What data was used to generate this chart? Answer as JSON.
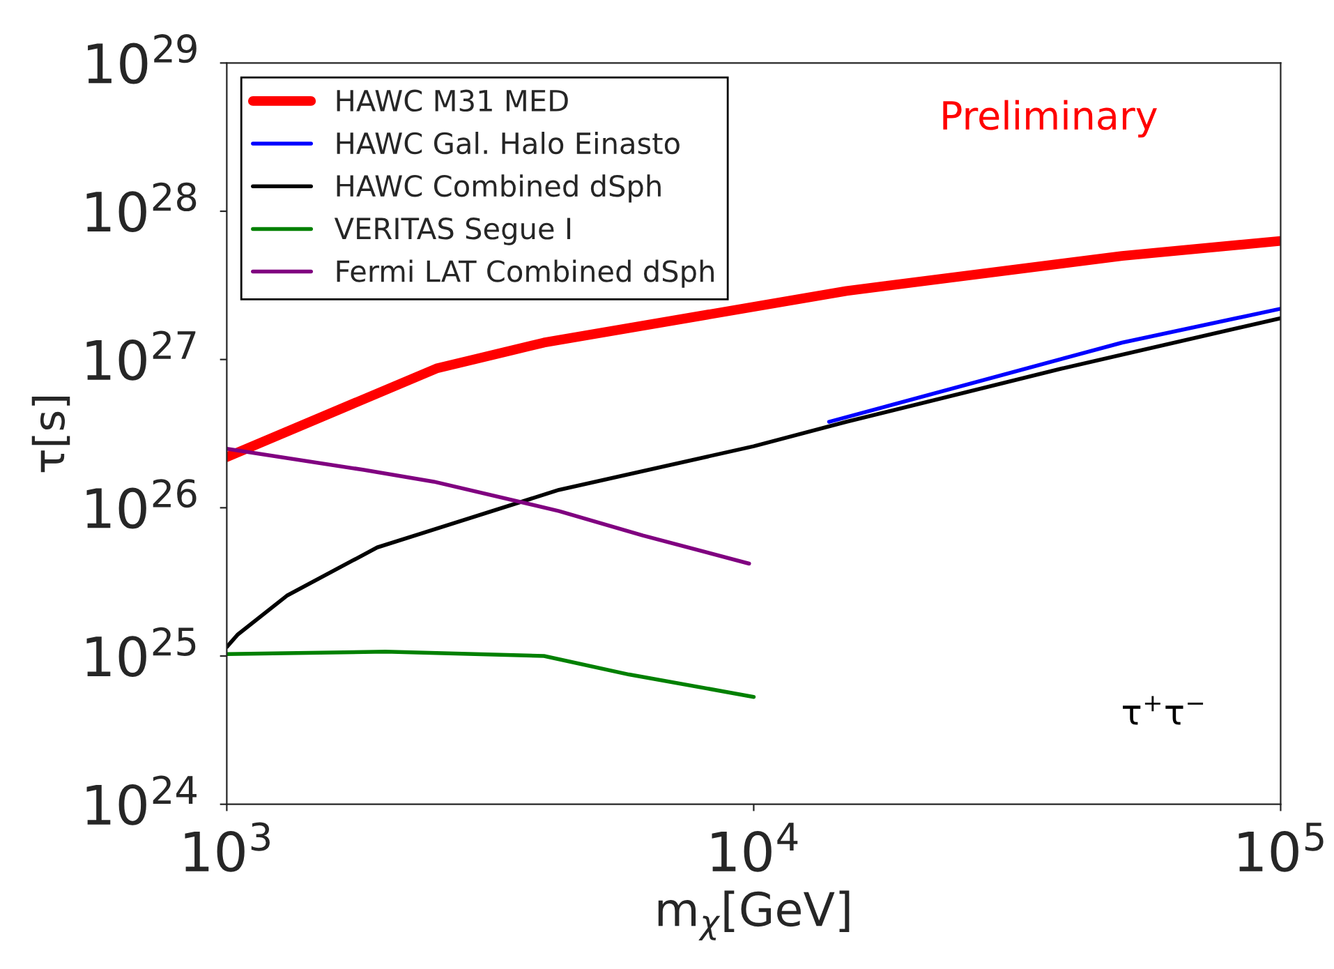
{
  "chart_data": {
    "type": "line",
    "log": "xy",
    "xlabel": "m$_{χ}$[GeV]",
    "ylabel": "τ[s]",
    "xlim": [
      1000,
      100000
    ],
    "ylim": [
      1e+24,
      1e+29
    ],
    "xticks": [
      {
        "value": 1000,
        "label": "10$^{3}$"
      },
      {
        "value": 10000,
        "label": "10$^{4}$"
      },
      {
        "value": 100000,
        "label": "10$^{5}$"
      }
    ],
    "yticks": [
      {
        "value": 1e+24,
        "label": "10$^{24}$"
      },
      {
        "value": 1e+25,
        "label": "10$^{25}$"
      },
      {
        "value": 1e+26,
        "label": "10$^{26}$"
      },
      {
        "value": 1e+27,
        "label": "10$^{27}$"
      },
      {
        "value": 1e+28,
        "label": "10$^{28}$"
      },
      {
        "value": 1e+29,
        "label": "10$^{29}$"
      }
    ],
    "grid": false,
    "legend": "top left",
    "marker": "none",
    "line_style": "solid",
    "annotations": [
      "Preliminary",
      "τ$^{+}$τ$^{−}$"
    ],
    "series": [
      {
        "name": "HAWC M31 MED",
        "color": "#ff0000",
        "x": [
          1000,
          2500,
          4000,
          15000,
          50000,
          100000
        ],
        "values": [
          2.2e+26,
          8.7e+26,
          1.3e+27,
          2.9e+27,
          5e+27,
          6.3e+27
        ]
      },
      {
        "name": "HAWC Gal. Halo Einasto",
        "color": "#0000ff",
        "x": [
          13900,
          50000,
          100000
        ],
        "values": [
          3.8e+26,
          1.3e+27,
          2.2e+27
        ]
      },
      {
        "name": "HAWC Combined dSph",
        "color": "#000000",
        "x": [
          1000,
          1050,
          1300,
          1930,
          4270,
          10000,
          15000,
          38500,
          100000
        ],
        "values": [
          1.15e+25,
          1.4e+25,
          2.55e+25,
          5.4e+25,
          1.32e+26,
          2.6e+26,
          3.8e+26,
          8.7e+26,
          1.9e+27
        ]
      },
      {
        "name": "VERITAS Segue I",
        "color": "#008000",
        "x": [
          1000,
          2000,
          4000,
          5800,
          10000
        ],
        "values": [
          1.03e+25,
          1.07e+25,
          1e+25,
          7.5e+24,
          5.3e+24
        ]
      },
      {
        "name": "Fermi LAT Combined dSph",
        "color": "#800080",
        "x": [
          1000,
          1820,
          2470,
          4270,
          6160,
          9800
        ],
        "values": [
          2.5e+26,
          1.8e+26,
          1.5e+26,
          9.5e+25,
          6.5e+25,
          4.2e+25
        ]
      }
    ]
  }
}
